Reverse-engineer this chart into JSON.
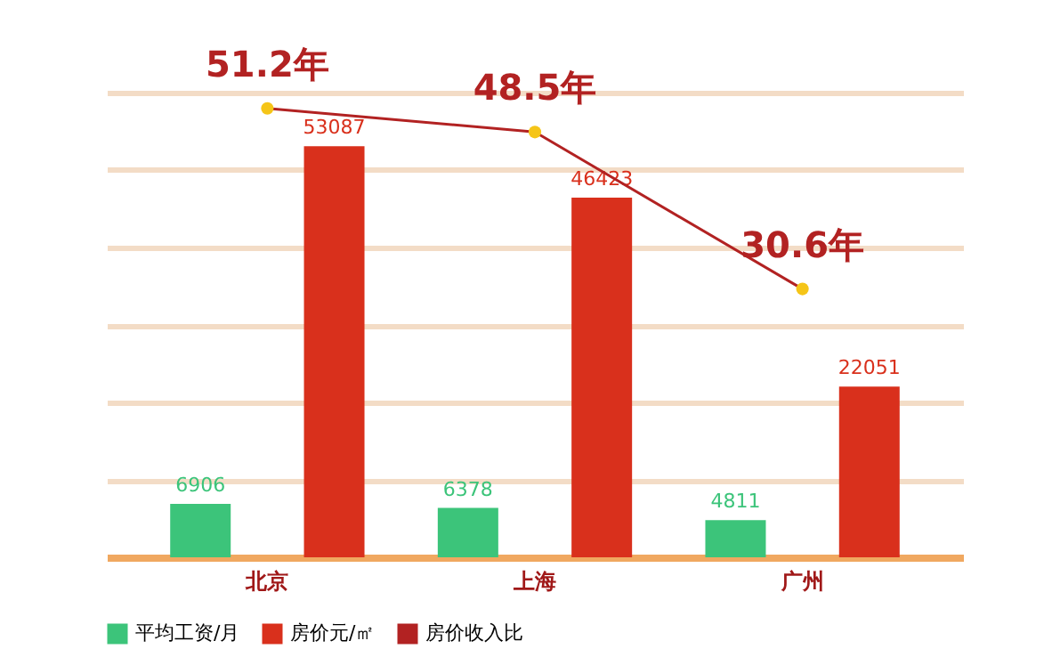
{
  "chart_data": {
    "type": "bar",
    "categories": [
      "北京",
      "上海",
      "广州"
    ],
    "series": [
      {
        "name": "平均工资/月",
        "color": "#3cc47a",
        "values": [
          6906,
          6378,
          4811
        ],
        "value_labels": [
          "6906",
          "6378",
          "4811"
        ]
      },
      {
        "name": "房价元/㎡",
        "color": "#d9301c",
        "values": [
          53087,
          46423,
          22051
        ],
        "value_labels": [
          "53087",
          "46423",
          "22051"
        ]
      },
      {
        "name": "房价收入比",
        "type": "line",
        "axis": "y2",
        "color": "#b22222",
        "marker": "circle",
        "values": [
          51.2,
          48.5,
          30.6
        ],
        "value_labels": [
          "51.2年",
          "48.5年",
          "30.6年"
        ]
      }
    ],
    "ylim": [
      0,
      60000
    ],
    "yticks": [
      {
        "value": 0,
        "label": null
      },
      {
        "value": 10000,
        "label": null
      },
      {
        "value": 20000,
        "label": null
      },
      {
        "value": 30000,
        "label": null
      },
      {
        "value": 40000,
        "label": null
      },
      {
        "value": 50000,
        "label": null
      },
      {
        "value": 60000,
        "label": null
      }
    ],
    "y2lim": [
      0,
      53
    ],
    "grid": "y",
    "legend": "bottom"
  }
}
